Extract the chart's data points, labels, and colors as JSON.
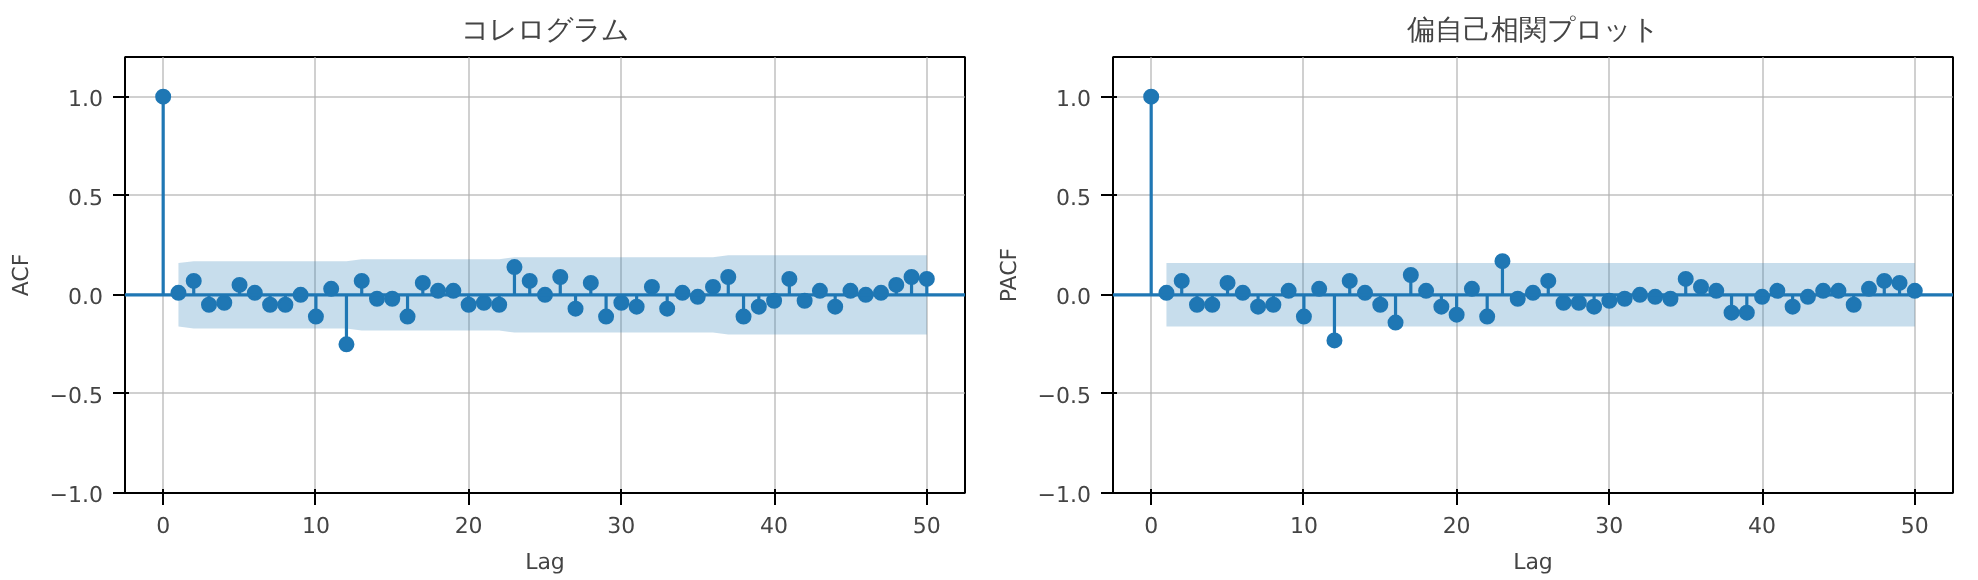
{
  "chart_data": [
    {
      "type": "lollipop",
      "title": "コレログラム",
      "xlabel": "Lag",
      "ylabel": "ACF",
      "xlim": [
        -2.5,
        52.5
      ],
      "ylim": [
        -1.0,
        1.2
      ],
      "xticks": [
        0,
        10,
        20,
        30,
        40,
        50
      ],
      "yticks": [
        {
          "value": -1.0,
          "label": "−1.0"
        },
        {
          "value": -0.5,
          "label": "−0.5"
        },
        {
          "value": 0.0,
          "label": "0.0"
        },
        {
          "value": 0.5,
          "label": "0.5"
        },
        {
          "value": 1.0,
          "label": "1.0"
        }
      ],
      "grid": true,
      "marker": "circle",
      "ref_lines": [
        {
          "axis": "y",
          "value": 0,
          "color": "#1f77b4"
        }
      ],
      "x": [
        0,
        1,
        2,
        3,
        4,
        5,
        6,
        7,
        8,
        9,
        10,
        11,
        12,
        13,
        14,
        15,
        16,
        17,
        18,
        19,
        20,
        21,
        22,
        23,
        24,
        25,
        26,
        27,
        28,
        29,
        30,
        31,
        32,
        33,
        34,
        35,
        36,
        37,
        38,
        39,
        40,
        41,
        42,
        43,
        44,
        45,
        46,
        47,
        48,
        49,
        50
      ],
      "series": [
        {
          "color": "#1f77b4",
          "values": [
            1.0,
            0.01,
            0.07,
            -0.05,
            -0.04,
            0.05,
            0.01,
            -0.05,
            -0.05,
            0.0,
            -0.11,
            0.03,
            -0.25,
            0.07,
            -0.02,
            -0.02,
            -0.11,
            0.06,
            0.02,
            0.02,
            -0.05,
            -0.04,
            -0.05,
            0.14,
            0.07,
            0.0,
            0.09,
            -0.07,
            0.06,
            -0.11,
            -0.04,
            -0.06,
            0.04,
            -0.07,
            0.01,
            -0.01,
            0.04,
            0.09,
            -0.11,
            -0.06,
            -0.03,
            0.08,
            -0.03,
            0.02,
            -0.06,
            0.02,
            0.0,
            0.01,
            0.05,
            0.09,
            0.08
          ],
          "upper": [
            null,
            0.16,
            0.17,
            0.17,
            0.17,
            0.17,
            0.17,
            0.17,
            0.17,
            0.17,
            0.17,
            0.17,
            0.17,
            0.18,
            0.18,
            0.18,
            0.18,
            0.18,
            0.18,
            0.18,
            0.18,
            0.18,
            0.18,
            0.19,
            0.19,
            0.19,
            0.19,
            0.19,
            0.19,
            0.19,
            0.19,
            0.19,
            0.19,
            0.19,
            0.19,
            0.19,
            0.19,
            0.2,
            0.2,
            0.2,
            0.2,
            0.2,
            0.2,
            0.2,
            0.2,
            0.2,
            0.2,
            0.2,
            0.2,
            0.2,
            0.2
          ],
          "lower": [
            null,
            -0.16,
            -0.17,
            -0.17,
            -0.17,
            -0.17,
            -0.17,
            -0.17,
            -0.17,
            -0.17,
            -0.17,
            -0.17,
            -0.17,
            -0.18,
            -0.18,
            -0.18,
            -0.18,
            -0.18,
            -0.18,
            -0.18,
            -0.18,
            -0.18,
            -0.18,
            -0.19,
            -0.19,
            -0.19,
            -0.19,
            -0.19,
            -0.19,
            -0.19,
            -0.19,
            -0.19,
            -0.19,
            -0.19,
            -0.19,
            -0.19,
            -0.19,
            -0.2,
            -0.2,
            -0.2,
            -0.2,
            -0.2,
            -0.2,
            -0.2,
            -0.2,
            -0.2,
            -0.2,
            -0.2,
            -0.2,
            -0.2,
            -0.2
          ]
        }
      ]
    },
    {
      "type": "lollipop",
      "title": "偏自己相関プロット",
      "xlabel": "Lag",
      "ylabel": "PACF",
      "xlim": [
        -2.5,
        52.5
      ],
      "ylim": [
        -1.0,
        1.2
      ],
      "xticks": [
        0,
        10,
        20,
        30,
        40,
        50
      ],
      "yticks": [
        {
          "value": -1.0,
          "label": "−1.0"
        },
        {
          "value": -0.5,
          "label": "−0.5"
        },
        {
          "value": 0.0,
          "label": "0.0"
        },
        {
          "value": 0.5,
          "label": "0.5"
        },
        {
          "value": 1.0,
          "label": "1.0"
        }
      ],
      "grid": true,
      "marker": "circle",
      "ref_lines": [
        {
          "axis": "y",
          "value": 0,
          "color": "#1f77b4"
        }
      ],
      "x": [
        0,
        1,
        2,
        3,
        4,
        5,
        6,
        7,
        8,
        9,
        10,
        11,
        12,
        13,
        14,
        15,
        16,
        17,
        18,
        19,
        20,
        21,
        22,
        23,
        24,
        25,
        26,
        27,
        28,
        29,
        30,
        31,
        32,
        33,
        34,
        35,
        36,
        37,
        38,
        39,
        40,
        41,
        42,
        43,
        44,
        45,
        46,
        47,
        48,
        49,
        50
      ],
      "series": [
        {
          "color": "#1f77b4",
          "values": [
            1.0,
            0.01,
            0.07,
            -0.05,
            -0.05,
            0.06,
            0.01,
            -0.06,
            -0.05,
            0.02,
            -0.11,
            0.03,
            -0.23,
            0.07,
            0.01,
            -0.05,
            -0.14,
            0.1,
            0.02,
            -0.06,
            -0.1,
            0.03,
            -0.11,
            0.17,
            -0.02,
            0.01,
            0.07,
            -0.04,
            -0.04,
            -0.06,
            -0.03,
            -0.02,
            0.0,
            -0.01,
            -0.02,
            0.08,
            0.04,
            0.02,
            -0.09,
            -0.09,
            -0.01,
            0.02,
            -0.06,
            -0.01,
            0.02,
            0.02,
            -0.05,
            0.03,
            0.07,
            0.06,
            0.02
          ],
          "upper": [
            null,
            0.16,
            0.16,
            0.16,
            0.16,
            0.16,
            0.16,
            0.16,
            0.16,
            0.16,
            0.16,
            0.16,
            0.16,
            0.16,
            0.16,
            0.16,
            0.16,
            0.16,
            0.16,
            0.16,
            0.16,
            0.16,
            0.16,
            0.16,
            0.16,
            0.16,
            0.16,
            0.16,
            0.16,
            0.16,
            0.16,
            0.16,
            0.16,
            0.16,
            0.16,
            0.16,
            0.16,
            0.16,
            0.16,
            0.16,
            0.16,
            0.16,
            0.16,
            0.16,
            0.16,
            0.16,
            0.16,
            0.16,
            0.16,
            0.16,
            0.16
          ],
          "lower": [
            null,
            -0.16,
            -0.16,
            -0.16,
            -0.16,
            -0.16,
            -0.16,
            -0.16,
            -0.16,
            -0.16,
            -0.16,
            -0.16,
            -0.16,
            -0.16,
            -0.16,
            -0.16,
            -0.16,
            -0.16,
            -0.16,
            -0.16,
            -0.16,
            -0.16,
            -0.16,
            -0.16,
            -0.16,
            -0.16,
            -0.16,
            -0.16,
            -0.16,
            -0.16,
            -0.16,
            -0.16,
            -0.16,
            -0.16,
            -0.16,
            -0.16,
            -0.16,
            -0.16,
            -0.16,
            -0.16,
            -0.16,
            -0.16,
            -0.16,
            -0.16,
            -0.16,
            -0.16,
            -0.16,
            -0.16,
            -0.16,
            -0.16,
            -0.16
          ]
        }
      ]
    }
  ]
}
